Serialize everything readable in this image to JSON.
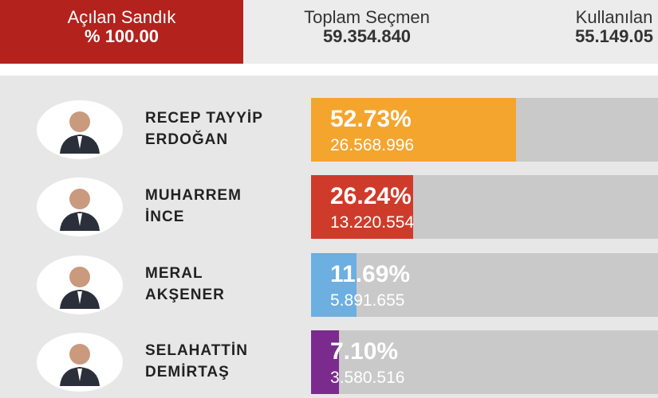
{
  "header": {
    "stats": [
      {
        "label": "Açılan Sandık",
        "value": "% 100.00"
      },
      {
        "label": "Toplam Seçmen",
        "value": "59.354.840"
      },
      {
        "label": "Kullanılan",
        "value": "55.149.05"
      }
    ]
  },
  "candidates": [
    {
      "name_line1": "RECEP TAYYİP",
      "name_line2": "ERDOĞAN",
      "percent": 52.73,
      "percent_label": "52.73%",
      "votes": "26.568.996",
      "color": "#f4a52e"
    },
    {
      "name_line1": "MUHARREM",
      "name_line2": "İNCE",
      "percent": 26.24,
      "percent_label": "26.24%",
      "votes": "13.220.554",
      "color": "#cf3b2a"
    },
    {
      "name_line1": "MERAL",
      "name_line2": "AKŞENER",
      "percent": 11.69,
      "percent_label": "11.69%",
      "votes": "5.891.655",
      "color": "#6cafe0"
    },
    {
      "name_line1": "SELAHATTİN",
      "name_line2": "DEMİRTAŞ",
      "percent": 7.1,
      "percent_label": "7.10%",
      "votes": "3.580.516",
      "color": "#7b2b8e"
    }
  ]
}
